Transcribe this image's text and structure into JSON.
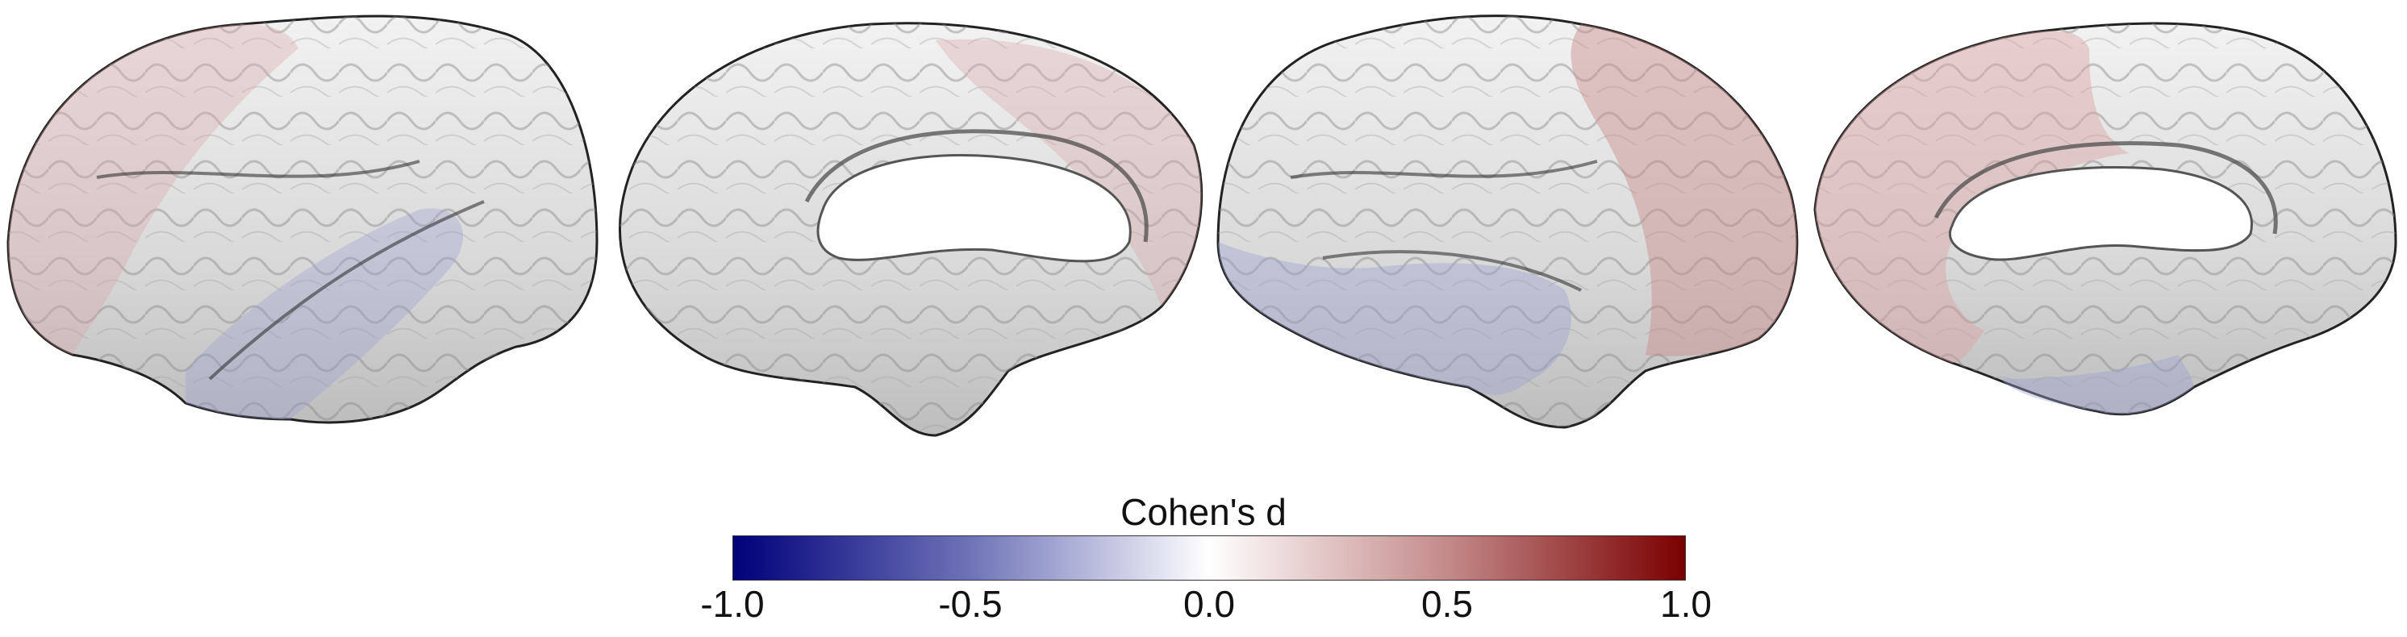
{
  "figure": {
    "views": [
      {
        "id": "left-lateral",
        "label": ""
      },
      {
        "id": "left-medial",
        "label": ""
      },
      {
        "id": "right-lateral",
        "label": ""
      },
      {
        "id": "right-medial",
        "label": ""
      }
    ],
    "colormap": {
      "name": "diverging blue-white-red",
      "low_color": "#00007a",
      "mid_color": "#ffffff",
      "high_color": "#7a0000"
    }
  },
  "colorbar": {
    "title": "Cohen's d",
    "ticks": [
      "-1.0",
      "-0.5",
      "0.0",
      "0.5",
      "1.0"
    ],
    "range": [
      -1.0,
      1.0
    ]
  }
}
